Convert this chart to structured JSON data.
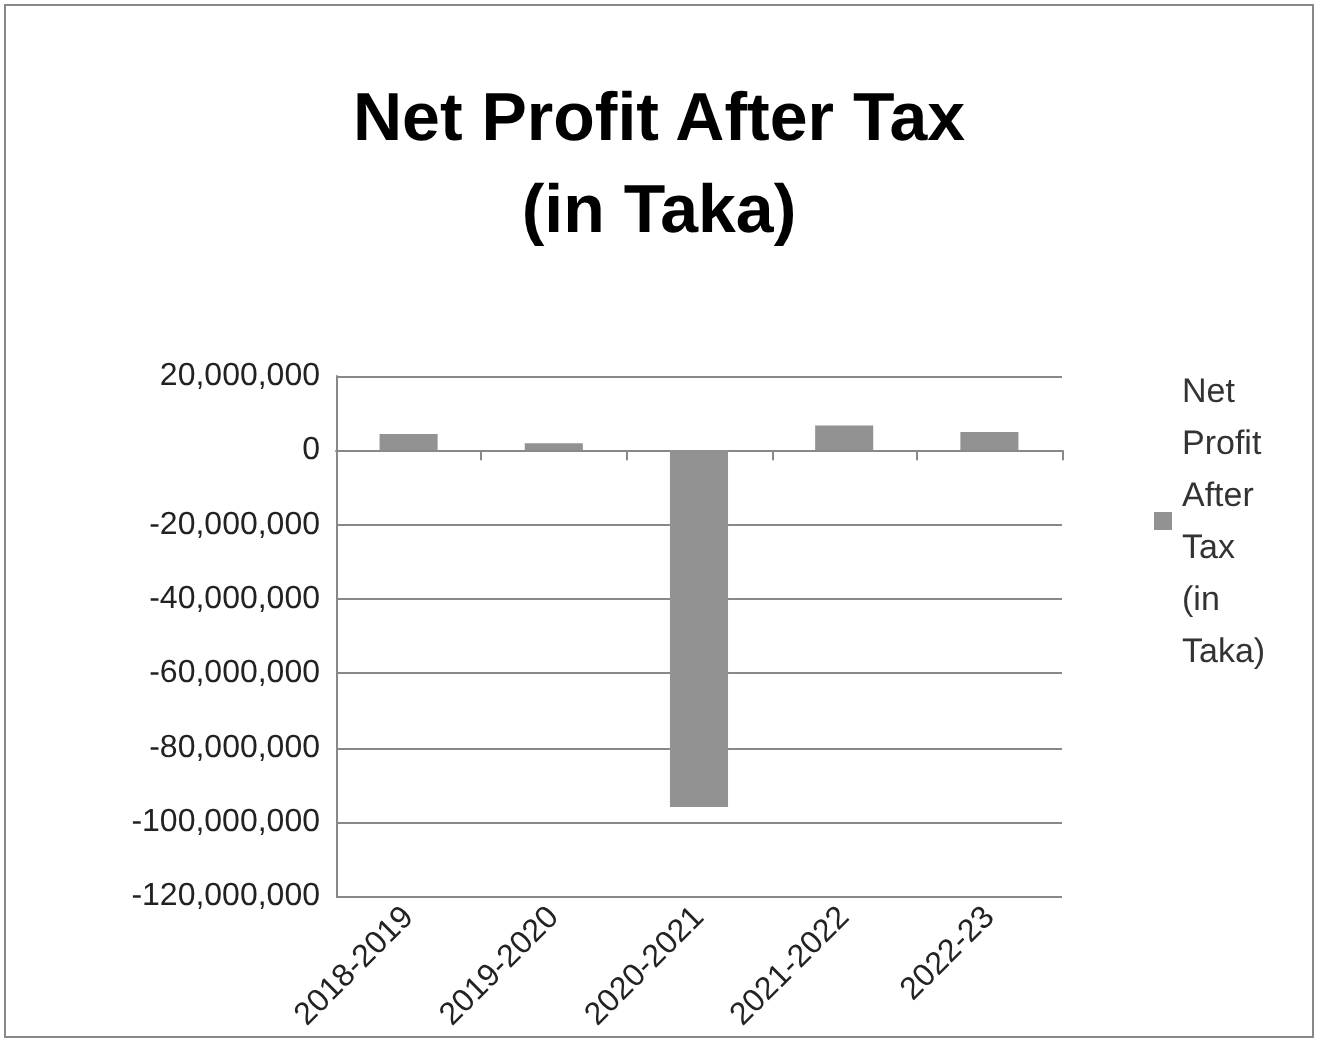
{
  "chart_data": {
    "type": "bar",
    "title": "Net Profit After Tax\n(in Taka)",
    "categories": [
      "2018-2019",
      "2019-2020",
      "2020-2021",
      "2021-2022",
      "2022-23"
    ],
    "series": [
      {
        "name": "Net Profit After Tax (in Taka)",
        "color": "#929292",
        "values": [
          4400000,
          1900000,
          -96000000,
          6700000,
          4900000
        ]
      }
    ],
    "ylim": [
      -120000000,
      20000000
    ],
    "yticks": [
      {
        "value": -120000000,
        "label": "-120,000,000"
      },
      {
        "value": -100000000,
        "label": "-100,000,000"
      },
      {
        "value": -80000000,
        "label": "-80,000,000"
      },
      {
        "value": -60000000,
        "label": "-60,000,000"
      },
      {
        "value": -40000000,
        "label": "-40,000,000"
      },
      {
        "value": -20000000,
        "label": "-20,000,000"
      },
      0,
      {
        "value": 20000000,
        "label": "20,000,000"
      }
    ],
    "grid": "y",
    "legend": "right"
  }
}
